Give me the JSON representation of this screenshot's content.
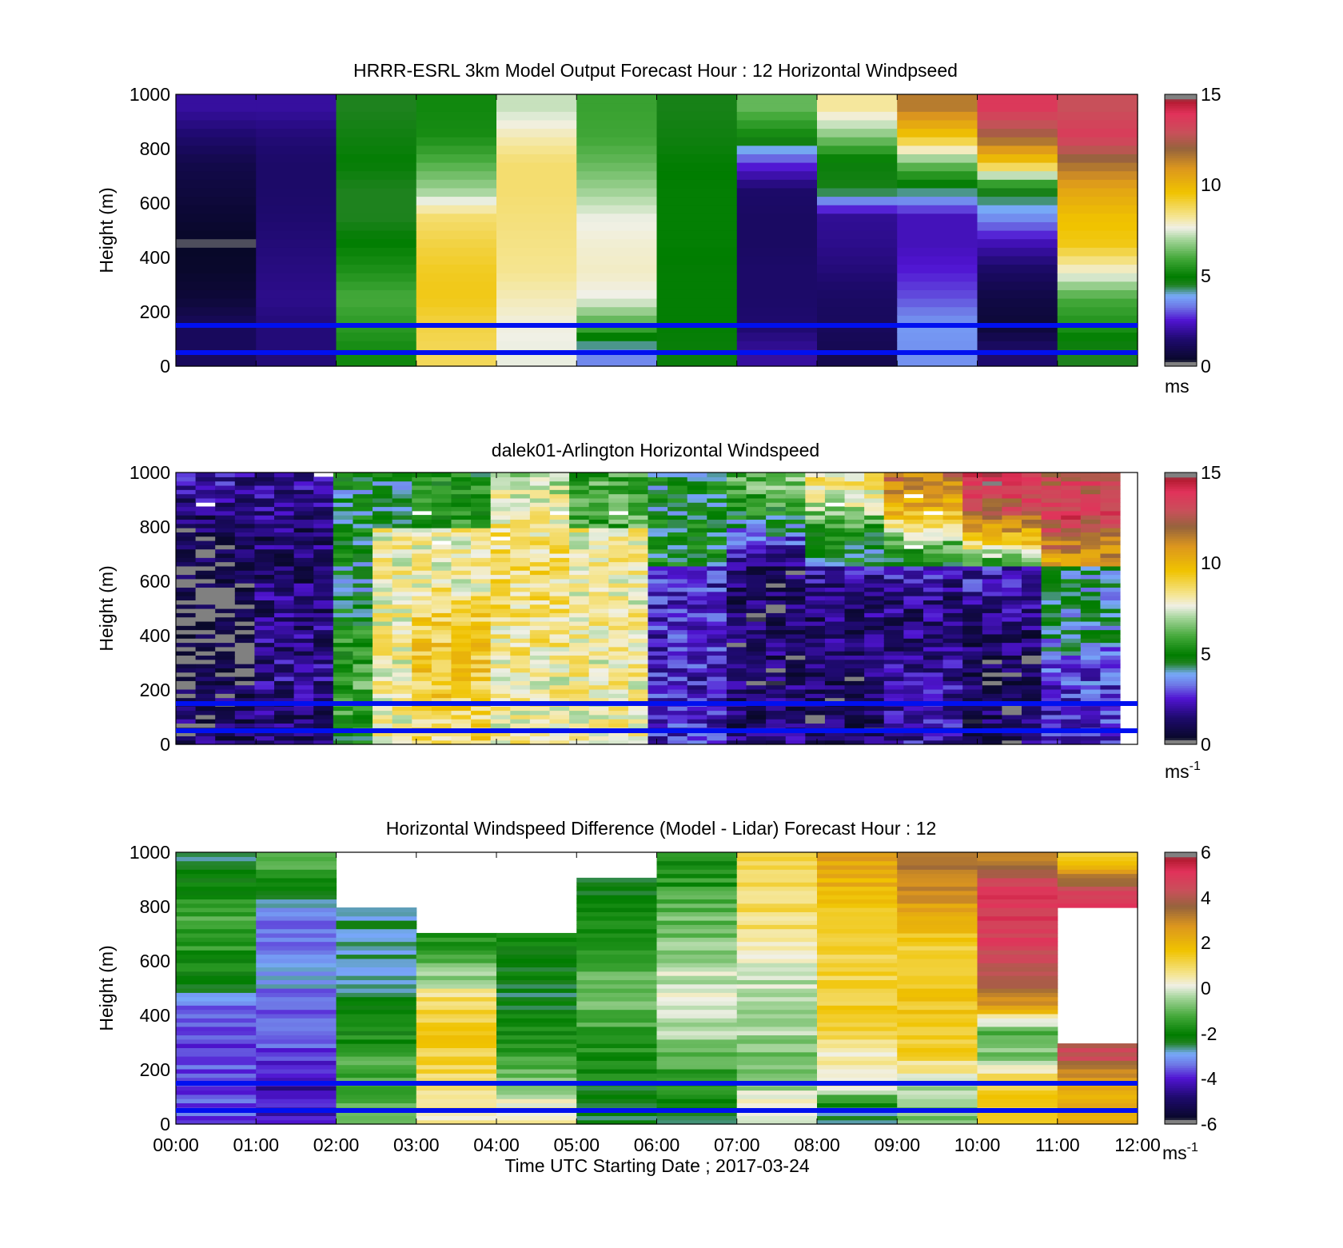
{
  "time_ticks": [
    "00:00",
    "01:00",
    "02:00",
    "03:00",
    "04:00",
    "05:00",
    "06:00",
    "07:00",
    "08:00",
    "09:00",
    "10:00",
    "11:00",
    "12:00"
  ],
  "xlabel": "Time UTC  Starting Date ; 2017-03-24",
  "ylabel": "Height (m)",
  "y_ticks": [
    "0",
    "200",
    "400",
    "600",
    "800",
    "1000"
  ],
  "reference_line_color": "#0010f0",
  "chart_data": [
    {
      "type": "heatmap",
      "title": "HRRR-ESRL 3km Model Output   Forecast Hour : 12 Horizontal Windpseed",
      "ylabel": "Height (m)",
      "xlim": [
        "00:00",
        "12:00"
      ],
      "ylim": [
        0,
        1000
      ],
      "colorbar": {
        "range": [
          0,
          15
        ],
        "ticks": [
          "0",
          "5",
          "10",
          "15"
        ],
        "unit": "ms",
        "unit_sup": ""
      },
      "reference_lines_m": [
        50,
        150
      ],
      "time_bins_h": [
        0,
        1,
        2,
        3,
        4,
        5,
        6,
        7,
        8,
        9,
        10,
        11,
        12
      ],
      "column_speed_profiles": [
        [
          1.2,
          1.2,
          0.6,
          0.4,
          0.3,
          0.5,
          0.7,
          0.9,
          1.5,
          2.0
        ],
        [
          1.6,
          1.6,
          1.8,
          1.7,
          1.6,
          1.5,
          1.4,
          1.4,
          1.6,
          2.0
        ],
        [
          5.2,
          5.6,
          6.0,
          5.4,
          5.0,
          4.5,
          4.5,
          4.9,
          4.7,
          4.5
        ],
        [
          8.8,
          9.0,
          9.4,
          9.3,
          9.0,
          8.6,
          6.9,
          6.1,
          5.3,
          5.2
        ],
        [
          7.6,
          7.7,
          8.0,
          8.3,
          8.4,
          8.5,
          8.6,
          8.6,
          8.0,
          7.3
        ],
        [
          3.5,
          6.0,
          7.6,
          7.9,
          7.8,
          7.6,
          6.9,
          6.3,
          5.9,
          5.8
        ],
        [
          4.8,
          4.9,
          4.9,
          4.9,
          5.0,
          5.0,
          5.0,
          4.9,
          4.7,
          4.6
        ],
        [
          2.0,
          1.5,
          1.4,
          1.4,
          1.3,
          1.3,
          1.4,
          2.8,
          5.2,
          6.3
        ],
        [
          1.0,
          1.2,
          1.3,
          1.6,
          1.8,
          1.9,
          4.6,
          4.8,
          6.7,
          8.2
        ],
        [
          3.6,
          3.7,
          3.0,
          2.6,
          2.3,
          2.3,
          4.4,
          6.5,
          9.6,
          11.5
        ],
        [
          1.5,
          0.6,
          0.8,
          1.3,
          2.2,
          3.6,
          4.7,
          9.5,
          12.2,
          13.7
        ],
        [
          4.5,
          5.4,
          6.0,
          7.8,
          9.4,
          9.7,
          10.5,
          11.8,
          13.6,
          12.9
        ]
      ]
    },
    {
      "type": "heatmap",
      "title": "dalek01-Arlington  Horizontal Windspeed",
      "ylabel": "Height (m)",
      "xlim": [
        "00:00",
        "12:00"
      ],
      "ylim": [
        0,
        1000
      ],
      "colorbar": {
        "range": [
          0,
          15
        ],
        "ticks": [
          "0",
          "5",
          "10",
          "15"
        ],
        "unit": "ms",
        "unit_sup": "-1"
      },
      "reference_lines_m": [
        50,
        150
      ]
    },
    {
      "type": "heatmap",
      "title": "Horizontal Windspeed Difference (Model - Lidar) Forecast Hour : 12",
      "ylabel": "Height (m)",
      "xlabel": "Time UTC  Starting Date ; 2017-03-24",
      "xlim": [
        "00:00",
        "12:00"
      ],
      "ylim": [
        0,
        1000
      ],
      "colorbar": {
        "range": [
          -6,
          6
        ],
        "ticks": [
          "-6",
          "-4",
          "-2",
          "0",
          "2",
          "4",
          "6"
        ],
        "unit": "ms",
        "unit_sup": "-1"
      },
      "reference_lines_m": [
        50,
        150
      ],
      "time_bins_h": [
        0,
        1,
        2,
        3,
        4,
        5,
        6,
        7,
        8,
        9,
        10,
        11,
        12
      ],
      "column_diff_profiles": [
        [
          -3.5,
          -3.6,
          -3.7,
          -3.5,
          -3.4,
          -2.0,
          -1.6,
          -1.3,
          -1.8,
          -2.4
        ],
        [
          -4.1,
          -4.3,
          -3.6,
          -3.4,
          -3.6,
          -2.8,
          -3.2,
          -3.4,
          -2.3,
          -1.2
        ],
        [
          -1.2,
          -1.1,
          -1.3,
          -2.0,
          -2.2,
          -2.6,
          -2.8,
          -2.6,
          null,
          null
        ],
        [
          0.5,
          0.9,
          1.3,
          1.4,
          1.1,
          -0.6,
          -1.6,
          null,
          null,
          null
        ],
        [
          0.4,
          -0.6,
          -1.4,
          -2.0,
          -2.3,
          -2.2,
          -1.9,
          null,
          null,
          null
        ],
        [
          -2.4,
          -2.0,
          -1.6,
          -1.4,
          -1.0,
          -0.8,
          -1.6,
          -1.9,
          -2.1,
          null
        ],
        [
          -2.3,
          -1.6,
          -1.0,
          -0.3,
          0.0,
          -0.2,
          -0.6,
          -0.9,
          -1.4,
          -1.8
        ],
        [
          0.3,
          -0.5,
          -0.7,
          -0.3,
          -0.4,
          -0.1,
          0.5,
          0.9,
          1.0,
          1.2
        ],
        [
          -2.8,
          0.6,
          0.3,
          1.2,
          1.4,
          1.2,
          1.3,
          1.4,
          1.9,
          2.4
        ],
        [
          -0.8,
          -0.2,
          1.2,
          1.5,
          1.6,
          1.4,
          1.2,
          2.2,
          3.0,
          3.2
        ],
        [
          1.3,
          1.4,
          -0.6,
          -1.0,
          3.0,
          4.2,
          4.6,
          4.9,
          5.1,
          3.2
        ],
        [
          2.2,
          2.3,
          4.3,
          null,
          null,
          null,
          null,
          null,
          5.0,
          1.7
        ]
      ]
    }
  ]
}
